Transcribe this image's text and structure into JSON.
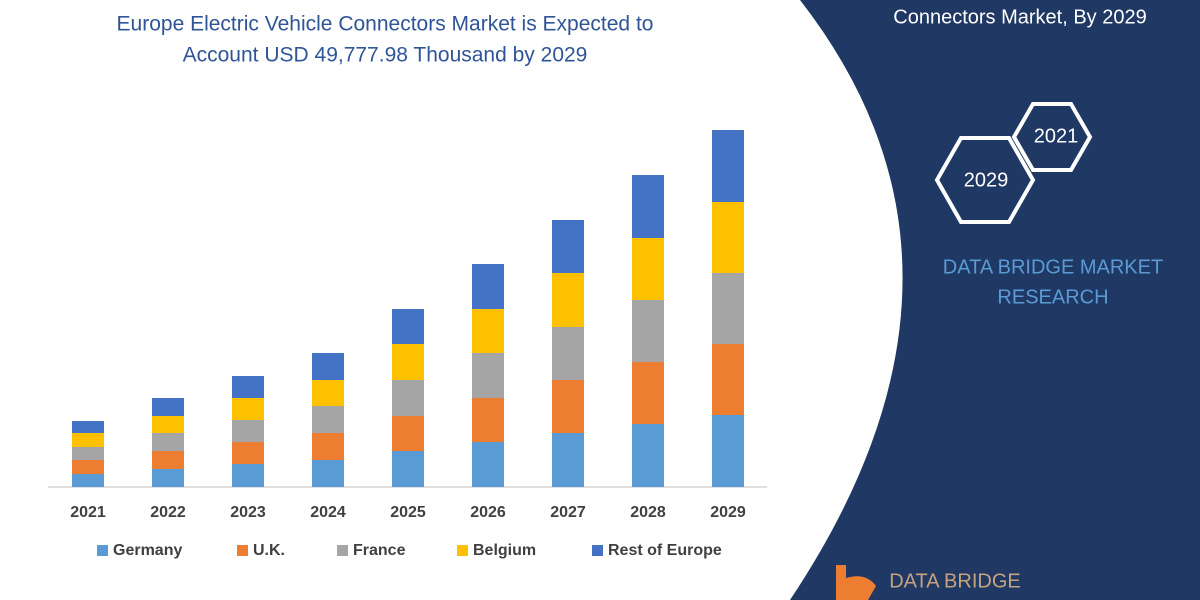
{
  "chart_data": {
    "type": "stacked_bar",
    "title": [
      "Europe Electric Vehicle Connectors Market is Expected to",
      "Account USD 49,777.98 Thousand by 2029"
    ],
    "categories": [
      "2021",
      "2022",
      "2023",
      "2024",
      "2025",
      "2026",
      "2027",
      "2028",
      "2029"
    ],
    "series": [
      {
        "name": "Germany",
        "color": "#5b9bd5",
        "values": [
          13,
          18,
          23,
          27,
          36,
          45,
          54,
          63,
          72
        ]
      },
      {
        "name": "U.K.",
        "color": "#ed7d31",
        "values": [
          14,
          18,
          22,
          27,
          35,
          44,
          53,
          62,
          71
        ]
      },
      {
        "name": "France",
        "color": "#a5a5a5",
        "values": [
          13,
          18,
          22,
          27,
          36,
          45,
          53,
          62,
          71
        ]
      },
      {
        "name": "Belgium",
        "color": "#ffc000",
        "values": [
          14,
          17,
          22,
          26,
          36,
          44,
          54,
          62,
          71
        ]
      },
      {
        "name": "Rest of Europe",
        "color": "#4472c4",
        "values": [
          12,
          18,
          22,
          27,
          35,
          45,
          53,
          63,
          72
        ]
      }
    ],
    "ylim": [
      0,
      360
    ]
  },
  "panel": {
    "heading": "Connectors Market, By 2029",
    "hexagons": [
      "2021",
      "2029"
    ],
    "brand_lines": [
      "DATA BRIDGE MARKET",
      "RESEARCH"
    ],
    "logo": "DATA BRIDGE"
  }
}
